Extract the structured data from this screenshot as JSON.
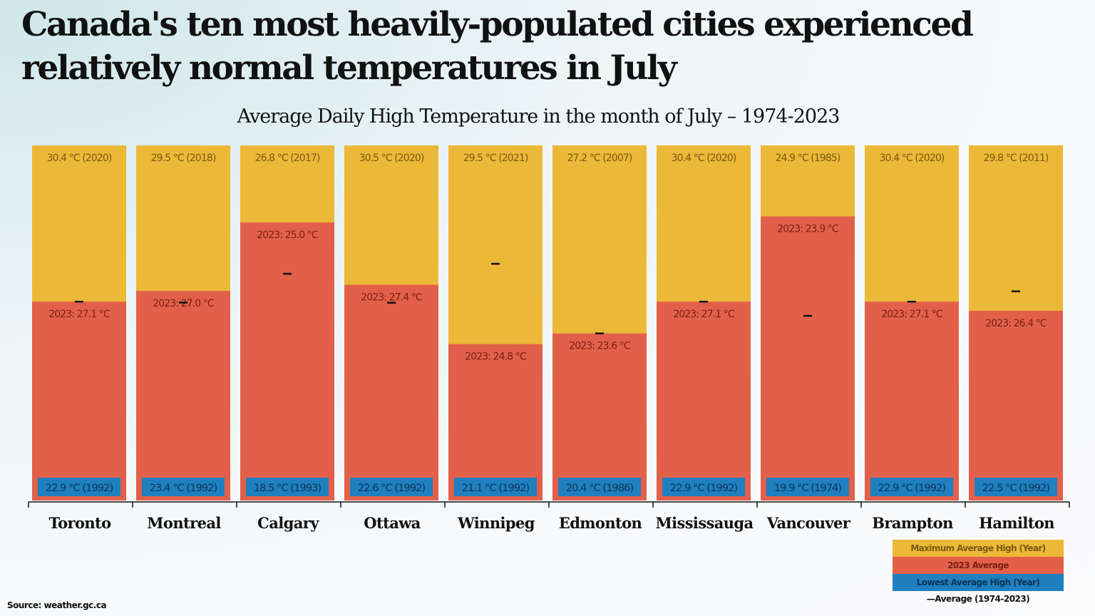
{
  "headline": "Canada's ten most heavily-populated cities experienced relatively normal temperatures in July",
  "colors": {
    "max": "#ecb838",
    "avg2023": "#e2604a",
    "low": "#1f7fbf",
    "avg_marker": "#111111"
  },
  "chart_data": {
    "type": "bar",
    "title": "Average Daily High Temperature in the month of July – 1974-2023",
    "categories": [
      "Toronto",
      "Montreal",
      "Calgary",
      "Ottawa",
      "Winnipeg",
      "Edmonton",
      "Mississauga",
      "Vancouver",
      "Brampton",
      "Hamilton"
    ],
    "series": [
      {
        "name": "Maximum Average High (Year)",
        "values": [
          30.4,
          29.5,
          26.8,
          30.5,
          29.5,
          27.2,
          30.4,
          24.9,
          30.4,
          29.8
        ],
        "labels": [
          "30.4 °C (2020)",
          "29.5 °C (2018)",
          "26.8 °C (2017)",
          "30.5 °C (2020)",
          "29.5 °C (2021)",
          "27.2 °C (2007)",
          "30.4 °C (2020)",
          "24.9 °C (1985)",
          "30.4 °C (2020)",
          "29.8 °C (2011)"
        ]
      },
      {
        "name": "2023 Average",
        "values": [
          27.1,
          27.0,
          25.0,
          27.4,
          24.8,
          23.6,
          27.1,
          23.9,
          27.1,
          26.4
        ],
        "labels": [
          "2023: 27.1 °C",
          "2023: 27.0 °C",
          "2023: 25.0 °C",
          "2023: 27.4 °C",
          "2023: 24.8 °C",
          "2023: 23.6 °C",
          "2023: 27.1 °C",
          "2023: 23.9 °C",
          "2023: 27.1 °C",
          "2023: 26.4 °C"
        ]
      },
      {
        "name": "Lowest Average High (Year)",
        "values": [
          22.9,
          23.4,
          18.5,
          22.6,
          21.1,
          20.4,
          22.9,
          19.9,
          22.9,
          22.5
        ],
        "labels": [
          "22.9 °C (1992)",
          "23.4 °C (1992)",
          "18.5 °C (1993)",
          "22.6 °C (1992)",
          "21.1 °C (1992)",
          "20.4 °C (1986)",
          "22.9 °C (1992)",
          "19.9 °C (1974)",
          "22.9 °C (1992)",
          "22.5 °C (1992)"
        ]
      },
      {
        "name": "Average (1974-2023)",
        "values": [
          27.1,
          26.8,
          23.8,
          27.0,
          26.7,
          23.6,
          27.1,
          22.5,
          27.1,
          26.8
        ]
      }
    ]
  },
  "legend": {
    "max_label": "Maximum Average High (Year)",
    "avg2023_label": "2023 Average",
    "low_label": "Lowest Average High (Year)",
    "avg_label": "—Average (1974-2023)"
  },
  "source": "Source: weather.gc.ca"
}
